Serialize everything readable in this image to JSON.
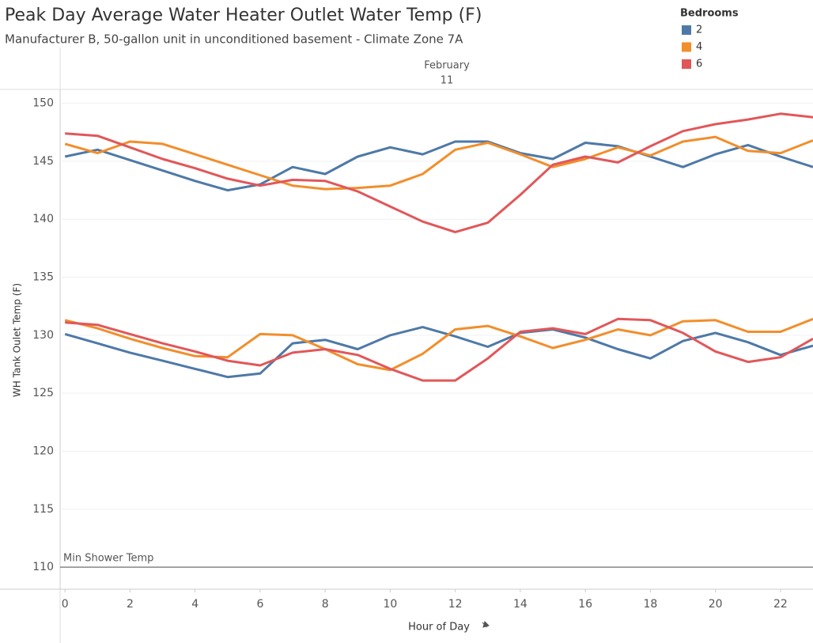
{
  "chart_data": {
    "type": "line",
    "title": "Peak Day Average Water Heater Outlet Water Temp (F)",
    "subtitle": "Manufacturer B, 50-gallon unit in unconditioned basement - Climate Zone 7A",
    "header": "February",
    "header_sub": "11",
    "x_label": "Hour of Day",
    "y_label": "WH Tank Oulet Temp (F)",
    "legend_title": "Bedrooms",
    "legend_position": "top-right",
    "grid": true,
    "x": [
      0,
      1,
      2,
      3,
      4,
      5,
      6,
      7,
      8,
      9,
      10,
      11,
      12,
      13,
      14,
      15,
      16,
      17,
      18,
      19,
      20,
      21,
      22,
      23
    ],
    "xlim": [
      -0.15,
      23
    ],
    "xticks": [
      0,
      2,
      4,
      6,
      8,
      10,
      12,
      14,
      16,
      18,
      20,
      22
    ],
    "ylim": [
      108.1,
      151.2
    ],
    "yticks": [
      110,
      115,
      120,
      125,
      130,
      135,
      140,
      145,
      150
    ],
    "reference_line": {
      "value": 110,
      "label": "Min Shower Temp"
    },
    "series": [
      {
        "name": "2",
        "color": "#4e79a7",
        "lines": [
          [
            145.4,
            146.0,
            145.1,
            144.2,
            143.3,
            142.5,
            143.0,
            144.5,
            143.9,
            145.4,
            146.2,
            145.6,
            146.7,
            146.7,
            145.7,
            145.2,
            146.6,
            146.3,
            145.4,
            144.5,
            145.6,
            146.4,
            145.4,
            144.5
          ],
          [
            130.1,
            129.3,
            128.5,
            127.8,
            127.1,
            126.4,
            126.7,
            129.3,
            129.6,
            128.8,
            130.0,
            130.7,
            129.9,
            129.0,
            130.2,
            130.5,
            129.8,
            128.8,
            128.0,
            129.5,
            130.2,
            129.4,
            128.3,
            129.1
          ]
        ]
      },
      {
        "name": "4",
        "color": "#f28e2b",
        "lines": [
          [
            146.5,
            145.7,
            146.7,
            146.5,
            145.6,
            144.7,
            143.8,
            142.9,
            142.6,
            142.7,
            142.9,
            143.9,
            146.0,
            146.6,
            145.6,
            144.5,
            145.2,
            146.2,
            145.5,
            146.7,
            147.1,
            145.9,
            145.7,
            146.8
          ],
          [
            131.3,
            130.6,
            129.7,
            128.9,
            128.2,
            128.1,
            130.1,
            130.0,
            128.8,
            127.5,
            127.0,
            128.4,
            130.5,
            130.8,
            129.9,
            128.9,
            129.6,
            130.5,
            130.0,
            131.2,
            131.3,
            130.3,
            130.3,
            131.4
          ]
        ]
      },
      {
        "name": "6",
        "color": "#e15759",
        "lines": [
          [
            147.4,
            147.2,
            146.2,
            145.2,
            144.4,
            143.5,
            142.9,
            143.4,
            143.3,
            142.4,
            141.1,
            139.8,
            138.9,
            139.7,
            142.1,
            144.7,
            145.4,
            144.9,
            146.3,
            147.6,
            148.2,
            148.6,
            149.1,
            148.8
          ],
          [
            131.1,
            130.9,
            130.1,
            129.3,
            128.6,
            127.8,
            127.4,
            128.5,
            128.8,
            128.3,
            127.1,
            126.1,
            126.1,
            128.0,
            130.3,
            130.6,
            130.1,
            131.4,
            131.3,
            130.2,
            128.6,
            127.7,
            128.1,
            129.7
          ]
        ]
      }
    ]
  }
}
